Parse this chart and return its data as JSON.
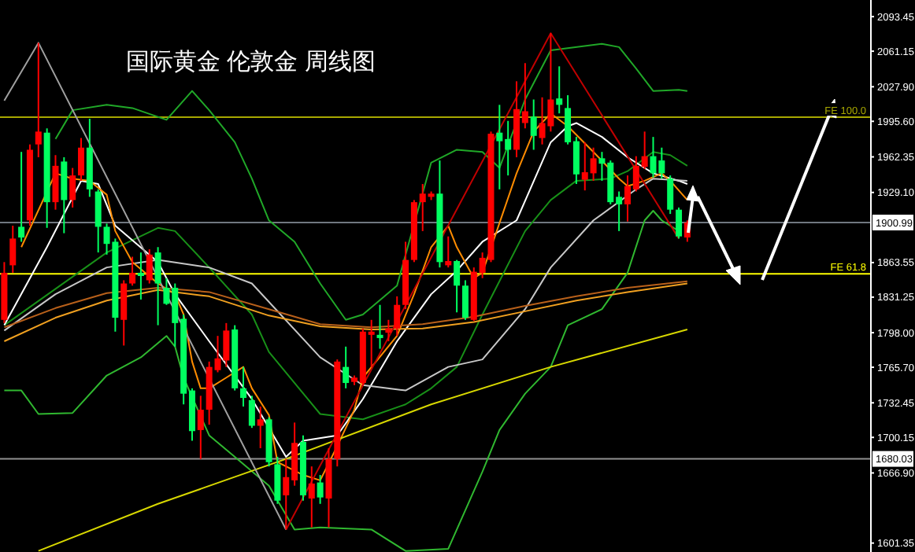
{
  "chart_data": {
    "type": "candlestick",
    "title": "国际黄金 伦敦金 周线图",
    "categories": [
      null,
      null,
      null,
      null,
      null,
      null,
      null,
      null,
      null,
      null,
      null,
      null,
      null,
      null,
      null,
      null,
      null,
      null,
      null,
      null,
      null,
      null,
      null,
      null,
      null,
      null,
      null,
      null,
      null,
      null,
      null,
      null,
      null,
      null,
      null,
      null,
      null,
      null,
      null,
      null,
      null,
      null,
      null,
      null,
      null,
      null,
      null,
      null,
      null,
      null,
      null,
      null,
      null,
      null,
      null,
      null,
      null,
      null,
      null,
      null,
      null,
      null,
      null,
      null,
      null,
      null,
      null,
      null,
      null,
      null,
      null,
      null,
      null,
      null,
      null,
      null,
      null,
      null,
      null,
      null,
      null,
      null,
      null,
      null,
      null,
      null,
      null,
      null,
      null,
      null,
      null,
      null,
      null,
      null,
      null,
      null,
      null,
      null,
      null,
      null,
      null,
      null
    ],
    "ylim": [
      1593,
      2109
    ],
    "yticks": [
      2093.45,
      2061.15,
      {
        "value": 2027.9,
        "label": "2027.90"
      },
      {
        "value": 1995.6,
        "label": "1995.60"
      },
      1962.35,
      {
        "value": 1929.1,
        "label": "1929.10"
      },
      1863.55,
      1831.25,
      {
        "value": 1798,
        "label": "1798.00"
      },
      {
        "value": 1765.7,
        "label": "1765.70"
      },
      1732.45,
      1700.15,
      {
        "value": 1666.9,
        "label": "1666.90"
      },
      1601.35
    ],
    "tick_labels": "y",
    "ohlc": [
      [
        1810,
        1864,
        1807,
        1854
      ],
      [
        1861,
        1898,
        1854,
        1886
      ],
      [
        1897,
        1967,
        1883,
        1887
      ],
      [
        1903,
        1974,
        1898,
        1969
      ],
      [
        1974,
        2069,
        1962,
        1986
      ],
      [
        1985,
        1989,
        1896,
        1920
      ],
      [
        1920,
        1964,
        1913,
        1954
      ],
      [
        1958,
        1962,
        1891,
        1922
      ],
      [
        1922,
        1952,
        1915,
        1945
      ],
      [
        1945,
        1980,
        1940,
        1971
      ],
      [
        1971,
        1998,
        1925,
        1932
      ],
      [
        1930,
        1932,
        1873,
        1897
      ],
      [
        1897,
        1900,
        1871,
        1881
      ],
      [
        1883,
        1886,
        1799,
        1812
      ],
      [
        1810,
        1847,
        1786,
        1844
      ],
      [
        1844,
        1869,
        1842,
        1854
      ],
      [
        1854,
        1873,
        1829,
        1851
      ],
      [
        1847,
        1876,
        1844,
        1871
      ],
      [
        1873,
        1878,
        1805,
        1844
      ],
      [
        1840,
        1849,
        1824,
        1825
      ],
      [
        1840,
        1844,
        1785,
        1807
      ],
      [
        1811,
        1815,
        1731,
        1741
      ],
      [
        1744,
        1746,
        1697,
        1706
      ],
      [
        1707,
        1739,
        1680,
        1726
      ],
      [
        1726,
        1771,
        1712,
        1766
      ],
      [
        1763,
        1795,
        1761,
        1774
      ],
      [
        1772,
        1807,
        1766,
        1800
      ],
      [
        1801,
        1805,
        1744,
        1746
      ],
      [
        1746,
        1766,
        1729,
        1737
      ],
      [
        1735,
        1739,
        1709,
        1711
      ],
      [
        1711,
        1729,
        1690,
        1717
      ],
      [
        1717,
        1719,
        1673,
        1677
      ],
      [
        1675,
        1682,
        1638,
        1641
      ],
      [
        1646,
        1680,
        1614,
        1663
      ],
      [
        1660,
        1714,
        1655,
        1695
      ],
      [
        1696,
        1702,
        1641,
        1646
      ],
      [
        1643,
        1673,
        1616,
        1657
      ],
      [
        1658,
        1665,
        1638,
        1644
      ],
      [
        1643,
        1690,
        1616,
        1680
      ],
      [
        1680,
        1773,
        1673,
        1771
      ],
      [
        1766,
        1785,
        1746,
        1751
      ],
      [
        1752,
        1758,
        1749,
        1756
      ],
      [
        1751,
        1802,
        1749,
        1799
      ],
      [
        1796,
        1810,
        1766,
        1799
      ],
      [
        1796,
        1824,
        1783,
        1793
      ],
      [
        1798,
        1810,
        1790,
        1802
      ],
      [
        1802,
        1832,
        1795,
        1824
      ],
      [
        1824,
        1883,
        1820,
        1866
      ],
      [
        1866,
        1922,
        1864,
        1920
      ],
      [
        1920,
        1937,
        1893,
        1928
      ],
      [
        1925,
        1930,
        1922,
        1928
      ],
      [
        1928,
        1959,
        1859,
        1864
      ],
      [
        1861,
        1888,
        1859,
        1865
      ],
      [
        1865,
        1866,
        1817,
        1842
      ],
      [
        1842,
        1847,
        1810,
        1812
      ],
      [
        1810,
        1859,
        1809,
        1855
      ],
      [
        1854,
        1873,
        1849,
        1868
      ],
      [
        1866,
        1986,
        1864,
        1984
      ],
      [
        1985,
        2011,
        1932,
        1977
      ],
      [
        1979,
        1996,
        1945,
        1969
      ],
      [
        1969,
        2033,
        1962,
        2007
      ],
      [
        1994,
        2050,
        1989,
        2005
      ],
      [
        2000,
        2016,
        1969,
        1982
      ],
      [
        1980,
        2018,
        1974,
        1994
      ],
      [
        1991,
        2078,
        1986,
        2016
      ],
      [
        2017,
        2047,
        2003,
        2011
      ],
      [
        2008,
        2020,
        1974,
        1976
      ],
      [
        1977,
        1981,
        1937,
        1946
      ],
      [
        1941,
        1976,
        1931,
        1948
      ],
      [
        1947,
        1971,
        1940,
        1961
      ],
      [
        1961,
        1967,
        1940,
        1956
      ],
      [
        1957,
        1959,
        1918,
        1920
      ],
      [
        1925,
        1930,
        1893,
        1918
      ],
      [
        1918,
        1945,
        1902,
        1935
      ],
      [
        1932,
        1963,
        1930,
        1954
      ],
      [
        1953,
        1986,
        1951,
        1963
      ],
      [
        1963,
        1981,
        1943,
        1947
      ],
      [
        1959,
        1971,
        1942,
        1947
      ],
      [
        1942,
        1945,
        1909,
        1913
      ],
      [
        1913,
        1915,
        1886,
        1888
      ],
      [
        1887,
        1903,
        1883,
        1901
      ],
      null,
      null,
      null,
      null,
      null,
      null,
      null,
      null,
      null,
      null,
      null,
      null,
      null,
      null,
      null,
      null,
      null,
      null,
      null,
      null,
      null
    ],
    "colors": [
      "#ff0000",
      "#ff0000",
      "#00ff60",
      "#ff0000",
      "#ff0000",
      "#00ff60",
      "#ff0000",
      "#00ff60",
      "#ff0000",
      "#ff0000",
      "#00ff60",
      "#00ff60",
      "#00ff60",
      "#00ff60",
      "#ff0000",
      "#ff0000",
      "#00ff60",
      "#ff0000",
      "#00ff60",
      "#00ff60",
      "#00ff60",
      "#00ff60",
      "#00ff60",
      "#ff0000",
      "#ff0000",
      "#ff0000",
      "#ff0000",
      "#00ff60",
      "#00ff60",
      "#00ff60",
      "#ff0000",
      "#00ff60",
      "#00ff60",
      "#ff0000",
      "#ff0000",
      "#00ff60",
      "#ff0000",
      "#00ff60",
      "#ff0000",
      "#ff0000",
      "#00ff60",
      "#ff0000",
      "#ff0000",
      "#ff0000",
      "#00ff60",
      "#ff0000",
      "#ff0000",
      "#ff0000",
      "#ff0000",
      "#ff0000",
      "#ff0000",
      "#00ff60",
      "#ff0000",
      "#00ff60",
      "#00ff60",
      "#ff0000",
      "#ff0000",
      "#ff0000",
      "#00ff60",
      "#00ff60",
      "#ff0000",
      "#ff0000",
      "#00ff60",
      "#ff0000",
      "#ff0000",
      "#00ff60",
      "#00ff60",
      "#00ff60",
      "#ff0000",
      "#ff0000",
      "#00ff60",
      "#00ff60",
      "#00ff60",
      "#ff0000",
      "#ff0000",
      "#ff0000",
      "#00ff60",
      "#00ff60",
      "#00ff60",
      "#00ff60",
      "#ff0000",
      null,
      null,
      null,
      null,
      null,
      null,
      null,
      null,
      null,
      null,
      null,
      null,
      null,
      null,
      null,
      null,
      null,
      null,
      null,
      null,
      null
    ],
    "series": [
      {
        "type": "line",
        "color": "#20a828",
        "values": [
          null,
          null,
          null,
          null,
          null,
          null,
          1979,
          null,
          2006,
          null,
          null,
          null,
          2011,
          null,
          null,
          2008,
          null,
          null,
          null,
          1997,
          null,
          null,
          2024,
          null,
          2006,
          null,
          null,
          1976,
          null,
          1942,
          null,
          1903,
          null,
          null,
          1883,
          null,
          null,
          1844,
          null,
          null,
          1810,
          null,
          1815,
          null,
          null,
          null,
          1842,
          null,
          null,
          null,
          1957,
          null,
          null,
          1969,
          null,
          null,
          1967,
          null,
          1952,
          null,
          null,
          2016,
          null,
          null,
          2062,
          null,
          null,
          null,
          null,
          null,
          2068,
          null,
          2065,
          null,
          2045,
          null,
          2024,
          null,
          null,
          2025,
          2024,
          null,
          null,
          null,
          null,
          null,
          null,
          null,
          null,
          null,
          null,
          null,
          null,
          null,
          null,
          null,
          null,
          null,
          null,
          null,
          null,
          null
        ]
      },
      {
        "type": "line",
        "color": "#189018",
        "values": [
          1805,
          null,
          null,
          null,
          null,
          null,
          1839,
          null,
          null,
          null,
          null,
          null,
          1873,
          null,
          null,
          null,
          null,
          null,
          1896,
          null,
          1893,
          null,
          null,
          null,
          1859,
          null,
          null,
          null,
          null,
          1815,
          null,
          1780,
          null,
          null,
          null,
          null,
          null,
          1722,
          null,
          null,
          null,
          null,
          1717,
          null,
          null,
          null,
          null,
          1731,
          null,
          null,
          1746,
          null,
          null,
          1766,
          null,
          null,
          1815,
          null,
          null,
          null,
          null,
          1893,
          null,
          null,
          1922,
          null,
          null,
          1940,
          null,
          null,
          null,
          1942,
          null,
          1949,
          null,
          null,
          1967,
          null,
          1964,
          null,
          1954,
          null,
          null,
          null,
          null,
          null,
          null,
          null,
          null,
          null,
          null,
          null,
          null,
          null,
          null,
          null,
          null,
          null,
          null,
          null,
          null,
          null
        ]
      },
      {
        "type": "line",
        "color": "#30b830",
        "values": [
          1744,
          null,
          1744,
          null,
          1722,
          null,
          null,
          null,
          1723,
          null,
          null,
          null,
          1758,
          null,
          null,
          null,
          1775,
          null,
          null,
          1795,
          1785,
          1756,
          null,
          null,
          1702,
          null,
          null,
          1682,
          null,
          null,
          null,
          1655,
          null,
          null,
          1614,
          null,
          null,
          1616,
          null,
          null,
          null,
          null,
          null,
          1614,
          null,
          null,
          null,
          1594,
          null,
          null,
          null,
          null,
          1596,
          null,
          null,
          null,
          1668,
          null,
          1707,
          null,
          null,
          1741,
          null,
          null,
          1766,
          null,
          1805,
          null,
          null,
          null,
          1820,
          null,
          null,
          1854,
          null,
          1903,
          1912,
          1903,
          null,
          1893,
          null,
          null,
          null,
          null,
          null,
          null,
          null,
          null,
          null,
          null,
          null,
          null,
          null,
          null,
          null,
          null,
          null,
          null,
          null,
          null,
          null,
          null
        ]
      },
      {
        "type": "line",
        "color": "#ffffff",
        "values": [
          1805,
          null,
          null,
          null,
          null,
          1878,
          null,
          null,
          null,
          1940,
          null,
          1937,
          null,
          1898,
          null,
          null,
          null,
          null,
          1864,
          null,
          1834,
          null,
          null,
          null,
          1790,
          null,
          null,
          null,
          null,
          1736,
          null,
          null,
          null,
          1682,
          null,
          1697,
          null,
          null,
          null,
          1702,
          null,
          null,
          1736,
          null,
          null,
          null,
          1790,
          null,
          null,
          null,
          1834,
          null,
          null,
          1856,
          null,
          null,
          1883,
          null,
          null,
          null,
          1903,
          null,
          null,
          null,
          1976,
          null,
          1991,
          1994,
          null,
          null,
          1981,
          null,
          null,
          1962,
          null,
          null,
          1947,
          null,
          null,
          1940,
          1937,
          null,
          null,
          null,
          null,
          null,
          null,
          null,
          null,
          null,
          null,
          null,
          null,
          null,
          null,
          null,
          null,
          null,
          null,
          null,
          null,
          null
        ]
      },
      {
        "type": "line",
        "color": "#c8c8c8",
        "values": [
          1800,
          null,
          null,
          null,
          null,
          null,
          1834,
          null,
          null,
          null,
          null,
          null,
          1859,
          null,
          null,
          null,
          null,
          null,
          1866,
          null,
          null,
          null,
          null,
          null,
          1859,
          null,
          null,
          null,
          null,
          1844,
          null,
          null,
          null,
          null,
          null,
          null,
          null,
          1775,
          null,
          null,
          null,
          null,
          1749,
          null,
          null,
          null,
          null,
          1744,
          null,
          null,
          null,
          null,
          1766,
          null,
          null,
          null,
          1773,
          null,
          null,
          null,
          null,
          1820,
          null,
          null,
          1859,
          null,
          null,
          null,
          null,
          1903,
          null,
          null,
          null,
          null,
          1932,
          null,
          1942,
          null,
          null,
          null,
          1940,
          null,
          null,
          null,
          null,
          null,
          null,
          null,
          null,
          null,
          null,
          null,
          null,
          null,
          null,
          null,
          null,
          null,
          null,
          null,
          null,
          null
        ]
      },
      {
        "type": "line",
        "color": "#ff8c00",
        "values": [
          null,
          null,
          1878,
          null,
          null,
          null,
          1947,
          null,
          1942,
          null,
          1940,
          null,
          1927,
          1893,
          null,
          1864,
          null,
          null,
          1844,
          null,
          1834,
          1815,
          1771,
          1746,
          1746,
          null,
          1756,
          null,
          1766,
          1746,
          null,
          1721,
          1677,
          null,
          null,
          1665,
          null,
          1660,
          null,
          1692,
          null,
          1726,
          1756,
          null,
          null,
          null,
          1795,
          null,
          1834,
          null,
          1878,
          null,
          1898,
          1878,
          null,
          1849,
          1854,
          null,
          null,
          null,
          1947,
          null,
          1986,
          null,
          2003,
          null,
          1991,
          null,
          null,
          1967,
          null,
          null,
          1942,
          1935,
          null,
          1940,
          null,
          1947,
          1940,
          null,
          1922,
          null,
          null,
          null,
          null,
          null,
          null,
          null,
          null,
          null,
          null,
          null,
          null,
          null,
          null,
          null,
          null,
          null,
          null,
          null,
          null,
          null
        ]
      },
      {
        "type": "line",
        "color": "#b8601a",
        "values": [
          1803,
          null,
          null,
          null,
          null,
          null,
          1821,
          null,
          null,
          null,
          null,
          null,
          1835,
          null,
          null,
          null,
          null,
          null,
          1840,
          null,
          null,
          null,
          null,
          null,
          1836,
          null,
          null,
          null,
          null,
          null,
          null,
          1820,
          null,
          null,
          null,
          null,
          null,
          1806,
          null,
          null,
          null,
          null,
          null,
          1803,
          null,
          null,
          null,
          null,
          null,
          1806,
          null,
          null,
          null,
          null,
          null,
          1813,
          null,
          null,
          null,
          null,
          null,
          1823,
          null,
          null,
          null,
          null,
          null,
          1832,
          null,
          null,
          null,
          null,
          null,
          1840,
          null,
          null,
          null,
          null,
          null,
          null,
          1846,
          null,
          null,
          null,
          null,
          null,
          null,
          null,
          null,
          null,
          null,
          null,
          null,
          null,
          null,
          null,
          null,
          null,
          null,
          null,
          null,
          null
        ]
      },
      {
        "type": "line",
        "color": "#f0a020",
        "values": [
          1790,
          null,
          null,
          null,
          null,
          null,
          1812,
          null,
          null,
          null,
          null,
          null,
          1828,
          null,
          null,
          null,
          null,
          null,
          1838,
          null,
          null,
          null,
          null,
          null,
          1832,
          null,
          null,
          null,
          null,
          null,
          null,
          1814,
          null,
          null,
          null,
          null,
          null,
          1804,
          null,
          null,
          null,
          null,
          null,
          1801,
          null,
          null,
          null,
          null,
          null,
          1802,
          null,
          null,
          null,
          null,
          null,
          1808,
          null,
          null,
          null,
          null,
          null,
          1818,
          null,
          null,
          null,
          null,
          null,
          1828,
          null,
          null,
          null,
          null,
          null,
          1836,
          null,
          null,
          null,
          null,
          null,
          null,
          1844,
          null,
          null,
          null,
          null,
          null,
          null,
          null,
          null,
          null,
          null,
          null,
          null,
          null,
          null,
          null,
          null,
          null,
          null,
          null,
          null,
          null
        ]
      },
      {
        "type": "line",
        "color": "#d8d800",
        "values": [
          null,
          null,
          null,
          null,
          1594,
          null,
          null,
          null,
          null,
          null,
          null,
          null,
          null,
          null,
          null,
          null,
          null,
          null,
          1638,
          null,
          null,
          null,
          null,
          null,
          null,
          null,
          null,
          null,
          null,
          null,
          null,
          null,
          null,
          1680,
          null,
          null,
          null,
          null,
          null,
          null,
          null,
          null,
          null,
          null,
          null,
          null,
          null,
          null,
          null,
          null,
          1731,
          null,
          null,
          null,
          null,
          null,
          null,
          null,
          null,
          null,
          null,
          null,
          null,
          null,
          1766,
          null,
          null,
          null,
          null,
          null,
          null,
          null,
          null,
          null,
          null,
          null,
          null,
          null,
          null,
          null,
          1801,
          null,
          null,
          null,
          null,
          null,
          null,
          null,
          null,
          null,
          null,
          null,
          null,
          null,
          null,
          null,
          null,
          null,
          null,
          null,
          null,
          null
        ]
      },
      {
        "type": "line",
        "color": "#c00000",
        "values": [
          null,
          null,
          null,
          null,
          null,
          null,
          null,
          null,
          null,
          null,
          null,
          null,
          null,
          null,
          null,
          null,
          null,
          null,
          null,
          null,
          null,
          null,
          null,
          null,
          null,
          null,
          null,
          null,
          null,
          null,
          null,
          null,
          null,
          1614,
          null,
          null,
          null,
          null,
          null,
          null,
          null,
          null,
          null,
          null,
          null,
          null,
          null,
          null,
          null,
          null,
          null,
          null,
          null,
          null,
          null,
          null,
          null,
          null,
          null,
          null,
          null,
          null,
          null,
          null,
          2078,
          null,
          null,
          null,
          null,
          null,
          null,
          null,
          null,
          null,
          null,
          null,
          null,
          null,
          null,
          1886,
          null,
          null,
          null,
          null,
          null,
          null,
          null,
          null,
          null,
          null,
          null,
          null,
          null,
          null,
          null,
          null,
          null,
          null,
          null,
          null,
          null,
          null
        ]
      },
      {
        "type": "line",
        "color": "#a0a0a0",
        "values": [
          2015,
          null,
          null,
          null,
          2069,
          null,
          null,
          null,
          null,
          null,
          null,
          null,
          null,
          null,
          null,
          null,
          null,
          null,
          null,
          null,
          null,
          null,
          null,
          null,
          null,
          null,
          null,
          null,
          null,
          null,
          null,
          null,
          null,
          1614,
          null,
          null,
          null,
          null,
          null,
          null,
          null,
          null,
          null,
          null,
          null,
          null,
          null,
          null,
          null,
          null,
          null,
          null,
          null,
          null,
          null,
          null,
          null,
          null,
          null,
          null,
          null,
          null,
          null,
          null,
          null,
          null,
          null,
          null,
          null,
          null,
          null,
          null,
          null,
          null,
          null,
          null,
          null,
          null,
          null,
          null,
          null,
          null,
          null,
          null,
          null,
          null,
          null,
          null,
          null,
          null,
          null,
          null,
          null,
          null,
          null,
          null,
          null,
          null,
          null,
          null,
          null,
          null
        ]
      }
    ],
    "ref_lines": [
      {
        "axis": "y",
        "value": 1999.4,
        "label": "FE 100.0",
        "color": "#a8a800"
      },
      {
        "axis": "y",
        "value": 1853,
        "label": "FE 61.8",
        "color": "#ffff00"
      },
      {
        "axis": "y",
        "value": 1900.99,
        "label": "1900.99",
        "color": "#707880"
      },
      {
        "axis": "y",
        "value": 1680.03,
        "label": "1680.03",
        "color": "#909090"
      }
    ]
  }
}
